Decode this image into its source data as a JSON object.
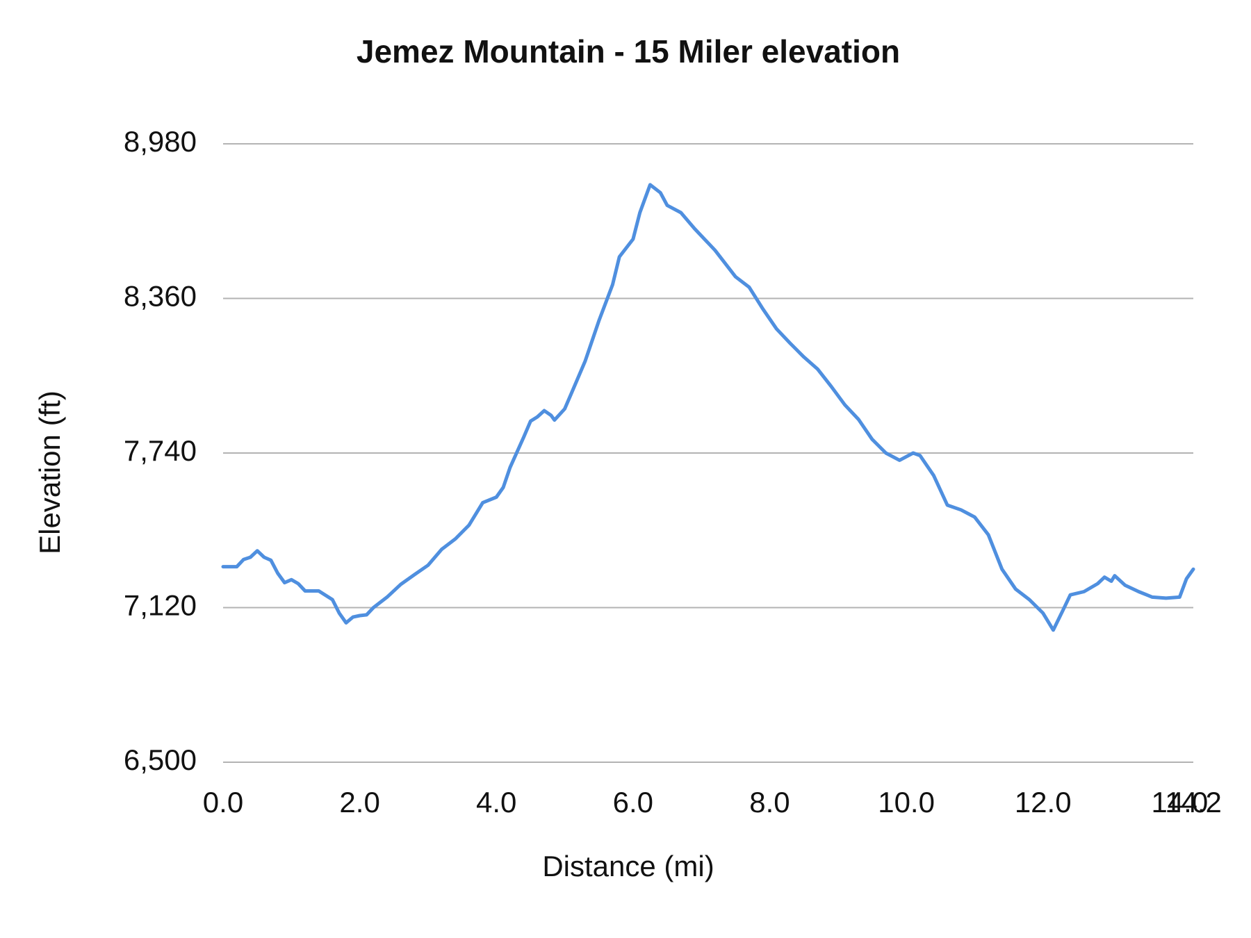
{
  "chart_data": {
    "type": "line",
    "title": "Jemez Mountain - 15 Miler elevation",
    "x_label": "Distance (mi)",
    "y_label": "Elevation (ft)",
    "x": [
      0,
      0.2,
      0.3,
      0.4,
      0.5,
      0.6,
      0.7,
      0.8,
      0.9,
      1.0,
      1.1,
      1.2,
      1.4,
      1.6,
      1.7,
      1.8,
      1.9,
      2.0,
      2.1,
      2.2,
      2.4,
      2.6,
      2.8,
      3.0,
      3.2,
      3.4,
      3.6,
      3.8,
      4.0,
      4.1,
      4.2,
      4.4,
      4.5,
      4.6,
      4.7,
      4.8,
      4.85,
      5.0,
      5.1,
      5.3,
      5.5,
      5.7,
      5.8,
      6.0,
      6.1,
      6.25,
      6.4,
      6.5,
      6.7,
      6.9,
      7.2,
      7.5,
      7.7,
      7.9,
      8.1,
      8.3,
      8.5,
      8.7,
      8.9,
      9.1,
      9.3,
      9.5,
      9.7,
      9.9,
      10.1,
      10.2,
      10.4,
      10.6,
      10.8,
      11.0,
      11.2,
      11.4,
      11.6,
      11.8,
      12.0,
      12.15,
      12.3,
      12.4,
      12.6,
      12.8,
      12.9,
      13.0,
      13.05,
      13.2,
      13.4,
      13.6,
      13.8,
      14.0,
      14.1,
      14.2
    ],
    "series": [
      {
        "name": "Elevation",
        "color": "#4f8fdf",
        "values": [
          7284,
          7284,
          7313,
          7322,
          7348,
          7322,
          7310,
          7258,
          7220,
          7232,
          7216,
          7187,
          7187,
          7152,
          7098,
          7059,
          7082,
          7088,
          7091,
          7120,
          7162,
          7213,
          7252,
          7290,
          7354,
          7396,
          7451,
          7541,
          7563,
          7602,
          7682,
          7804,
          7868,
          7885,
          7910,
          7891,
          7872,
          7917,
          7981,
          8109,
          8270,
          8415,
          8527,
          8598,
          8704,
          8816,
          8784,
          8733,
          8704,
          8640,
          8553,
          8447,
          8405,
          8318,
          8238,
          8180,
          8125,
          8077,
          8007,
          7933,
          7875,
          7795,
          7740,
          7711,
          7740,
          7730,
          7650,
          7531,
          7512,
          7483,
          7412,
          7274,
          7194,
          7152,
          7098,
          7030,
          7114,
          7171,
          7184,
          7216,
          7242,
          7226,
          7248,
          7210,
          7184,
          7162,
          7158,
          7162,
          7236,
          7274
        ]
      }
    ],
    "xlim": [
      0,
      14.2
    ],
    "xticks": [
      {
        "value": 0,
        "label": "0.0"
      },
      {
        "value": 2,
        "label": "2.0"
      },
      {
        "value": 4,
        "label": "4.0"
      },
      {
        "value": 6,
        "label": "6.0"
      },
      {
        "value": 8,
        "label": "8.0"
      },
      {
        "value": 10,
        "label": "10.0"
      },
      {
        "value": 12,
        "label": "12.0"
      },
      {
        "value": 14,
        "label": "14.0"
      },
      14.2
    ],
    "ylim": [
      6500,
      8980
    ],
    "yticks": [
      {
        "value": 6500,
        "label": "6,500"
      },
      {
        "value": 7120,
        "label": "7,120"
      },
      {
        "value": 7740,
        "label": "7,740"
      },
      {
        "value": 8360,
        "label": "8,360"
      },
      {
        "value": 8980,
        "label": "8,980"
      }
    ],
    "grid": true
  }
}
